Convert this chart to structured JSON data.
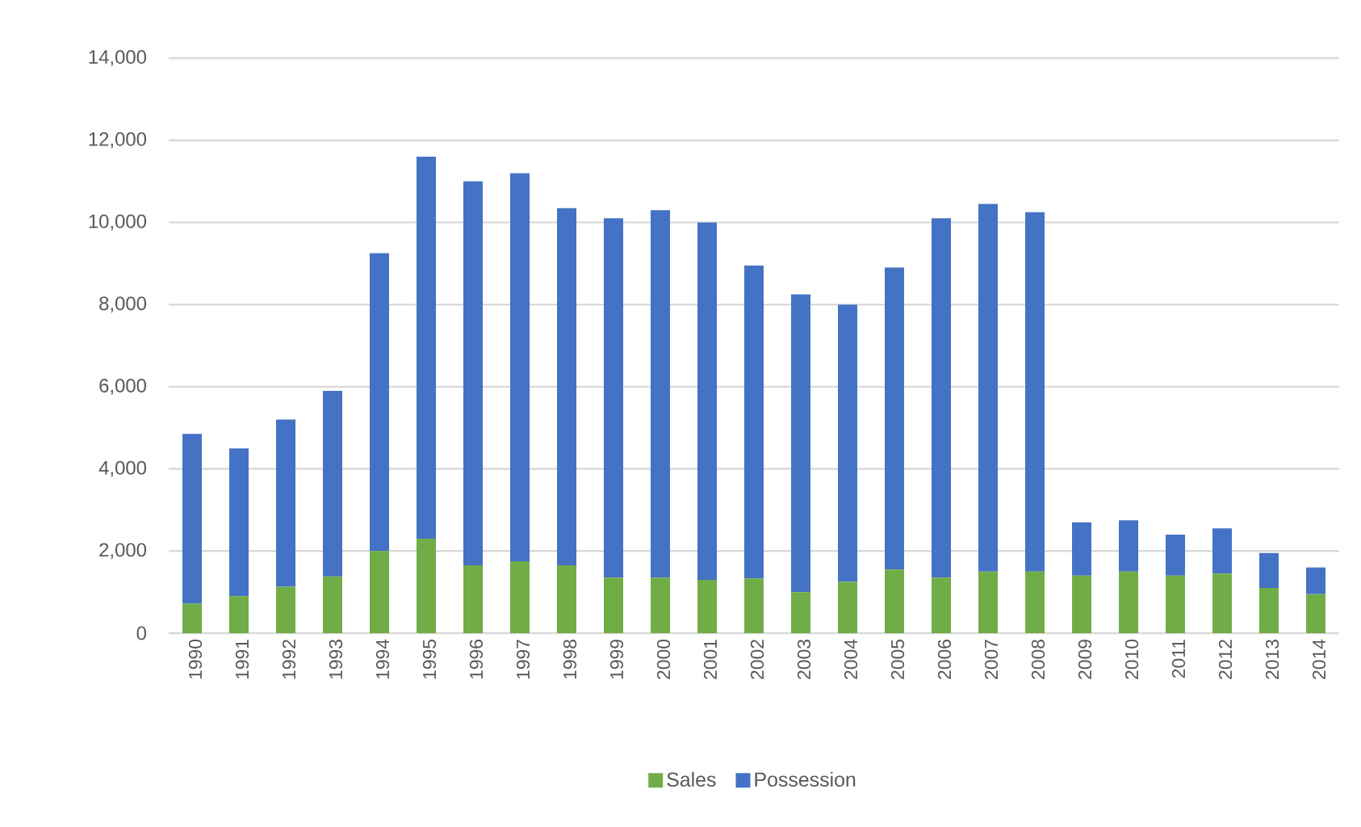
{
  "chart_data": {
    "type": "bar",
    "stacked": true,
    "categories": [
      "1990",
      "1991",
      "1992",
      "1993",
      "1994",
      "1995",
      "1996",
      "1997",
      "1998",
      "1999",
      "2000",
      "2001",
      "2002",
      "2003",
      "2004",
      "2005",
      "2006",
      "2007",
      "2008",
      "2009",
      "2010",
      "2011",
      "2012",
      "2013",
      "2014"
    ],
    "series": [
      {
        "name": "Sales",
        "color": "#70ad47",
        "values": [
          720,
          900,
          1130,
          1380,
          2000,
          2300,
          1650,
          1750,
          1650,
          1350,
          1350,
          1300,
          1330,
          1000,
          1250,
          1550,
          1350,
          1500,
          1500,
          1400,
          1500,
          1400,
          1450,
          1100,
          950
        ]
      },
      {
        "name": "Possession",
        "color": "#4472c4",
        "values": [
          4130,
          3600,
          4070,
          4520,
          7250,
          9300,
          9350,
          9450,
          8700,
          8750,
          8950,
          8700,
          7620,
          7250,
          6750,
          7350,
          8750,
          8950,
          8750,
          1300,
          1250,
          1000,
          1100,
          850,
          650
        ]
      }
    ],
    "ylim": [
      0,
      14000
    ],
    "yticks": [
      0,
      {
        "value": 2000,
        "label": "2,000"
      },
      {
        "value": 4000,
        "label": "4,000"
      },
      {
        "value": 6000,
        "label": "6,000"
      },
      {
        "value": 8000,
        "label": "8,000"
      },
      {
        "value": 10000,
        "label": "10,000"
      },
      {
        "value": 12000,
        "label": "12,000"
      },
      {
        "value": 14000,
        "label": "14,000"
      }
    ],
    "grid": "y",
    "legend": "bottom"
  }
}
